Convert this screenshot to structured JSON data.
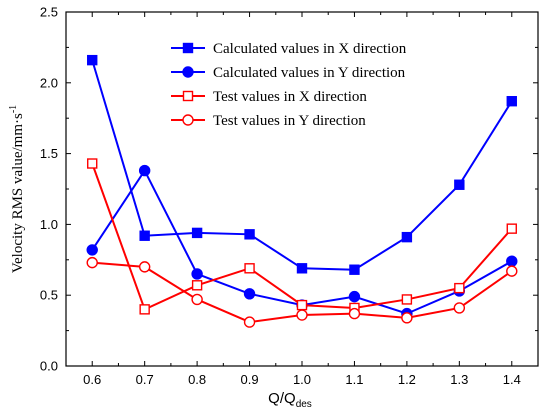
{
  "chart_data": {
    "type": "line",
    "xlabel_main": "Q/Q",
    "xlabel_sub": "des",
    "ylabel": "Velocity RMS value/mm·s",
    "ylabel_sup": "-1",
    "x": [
      0.6,
      0.7,
      0.8,
      0.9,
      1.0,
      1.1,
      1.2,
      1.3,
      1.4
    ],
    "xlim": [
      0.55,
      1.45
    ],
    "ylim": [
      0.0,
      2.5
    ],
    "xticks": [
      "0.6",
      "0.7",
      "0.8",
      "0.9",
      "1.0",
      "1.1",
      "1.2",
      "1.3",
      "1.4"
    ],
    "yticks": [
      "0.0",
      "0.5",
      "1.0",
      "1.5",
      "2.0",
      "2.5"
    ],
    "legend_position": "top-right",
    "series": [
      {
        "name": "Calculated values in X direction",
        "color": "#0000ff",
        "marker": "square",
        "filled": true,
        "values": [
          2.16,
          0.92,
          0.94,
          0.93,
          0.69,
          0.68,
          0.91,
          1.28,
          1.87
        ]
      },
      {
        "name": "Calculated values in Y direction",
        "color": "#0000ff",
        "marker": "circle",
        "filled": true,
        "values": [
          0.82,
          1.38,
          0.65,
          0.51,
          0.43,
          0.49,
          0.37,
          0.53,
          0.74
        ]
      },
      {
        "name": "Test values in X direction",
        "color": "#ff0000",
        "marker": "square",
        "filled": false,
        "values": [
          1.43,
          0.4,
          0.57,
          0.69,
          0.43,
          0.41,
          0.47,
          0.55,
          0.97
        ]
      },
      {
        "name": "Test values in Y direction",
        "color": "#ff0000",
        "marker": "circle",
        "filled": false,
        "values": [
          0.73,
          0.7,
          0.47,
          0.31,
          0.36,
          0.37,
          0.34,
          0.41,
          0.67
        ]
      }
    ]
  }
}
